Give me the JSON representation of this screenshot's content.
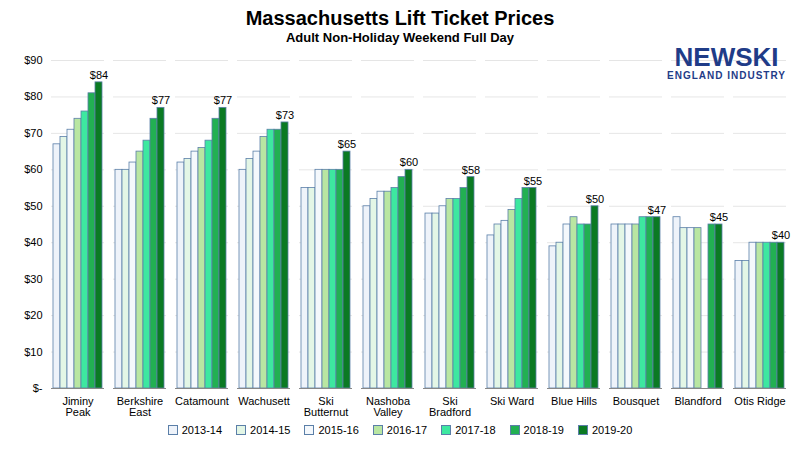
{
  "chart_data": {
    "type": "bar",
    "title": "Massachusetts Lift Ticket Prices",
    "subtitle": "Adult Non-Holiday Weekend Full Day",
    "annotations": [
      "NEWSKI",
      "ENGLAND INDUSTRY"
    ],
    "categories": [
      "Jiminy Peak",
      "Berkshire East",
      "Catamount",
      "Wachusett",
      "Ski Butternut",
      "Nashoba Valley",
      "Ski Bradford",
      "Ski Ward",
      "Blue Hills",
      "Bousquet",
      "Blandford",
      "Otis Ridge"
    ],
    "series": [
      {
        "name": "2013-14",
        "color": "#eef3fa",
        "values": [
          67,
          60,
          62,
          60,
          55,
          50,
          48,
          42,
          39,
          45,
          47,
          35
        ]
      },
      {
        "name": "2014-15",
        "color": "#e3f6e6",
        "values": [
          69,
          60,
          63,
          63,
          55,
          52,
          48,
          45,
          40,
          45,
          44,
          35
        ]
      },
      {
        "name": "2015-16",
        "color": "#f4f8fc",
        "values": [
          71,
          62,
          65,
          65,
          60,
          54,
          50,
          46,
          45,
          45,
          44,
          40
        ]
      },
      {
        "name": "2016-17",
        "color": "#b9e6a2",
        "values": [
          74,
          65,
          66,
          69,
          60,
          54,
          52,
          49,
          47,
          45,
          44,
          40
        ]
      },
      {
        "name": "2017-18",
        "color": "#3de8a0",
        "values": [
          76,
          68,
          68,
          71,
          60,
          55,
          52,
          52,
          45,
          47,
          null,
          40
        ]
      },
      {
        "name": "2018-19",
        "color": "#22b052",
        "values": [
          81,
          74,
          74,
          71,
          60,
          58,
          55,
          55,
          45,
          47,
          45,
          40
        ]
      },
      {
        "name": "2019-20",
        "color": "#0b7a23",
        "values": [
          84,
          77,
          77,
          73,
          65,
          60,
          58,
          55,
          50,
          47,
          45,
          40
        ],
        "data_labels": true,
        "value_labels": [
          "$84",
          "$77",
          "$77",
          "$73",
          "$65",
          "$60",
          "$58",
          "$55",
          "$50",
          "$47",
          "$45",
          "$40"
        ]
      }
    ],
    "ylim": [
      0,
      90
    ],
    "yticks": [
      {
        "value": 0,
        "label": "$-"
      },
      {
        "value": 10,
        "label": "$10"
      },
      {
        "value": 20,
        "label": "$20"
      },
      {
        "value": 30,
        "label": "$30"
      },
      {
        "value": 40,
        "label": "$40"
      },
      {
        "value": 50,
        "label": "$50"
      },
      {
        "value": 60,
        "label": "$60"
      },
      {
        "value": 70,
        "label": "$70"
      },
      {
        "value": 80,
        "label": "$80"
      },
      {
        "value": 90,
        "label": "$90"
      }
    ],
    "grid": true,
    "legend": "bottom"
  }
}
